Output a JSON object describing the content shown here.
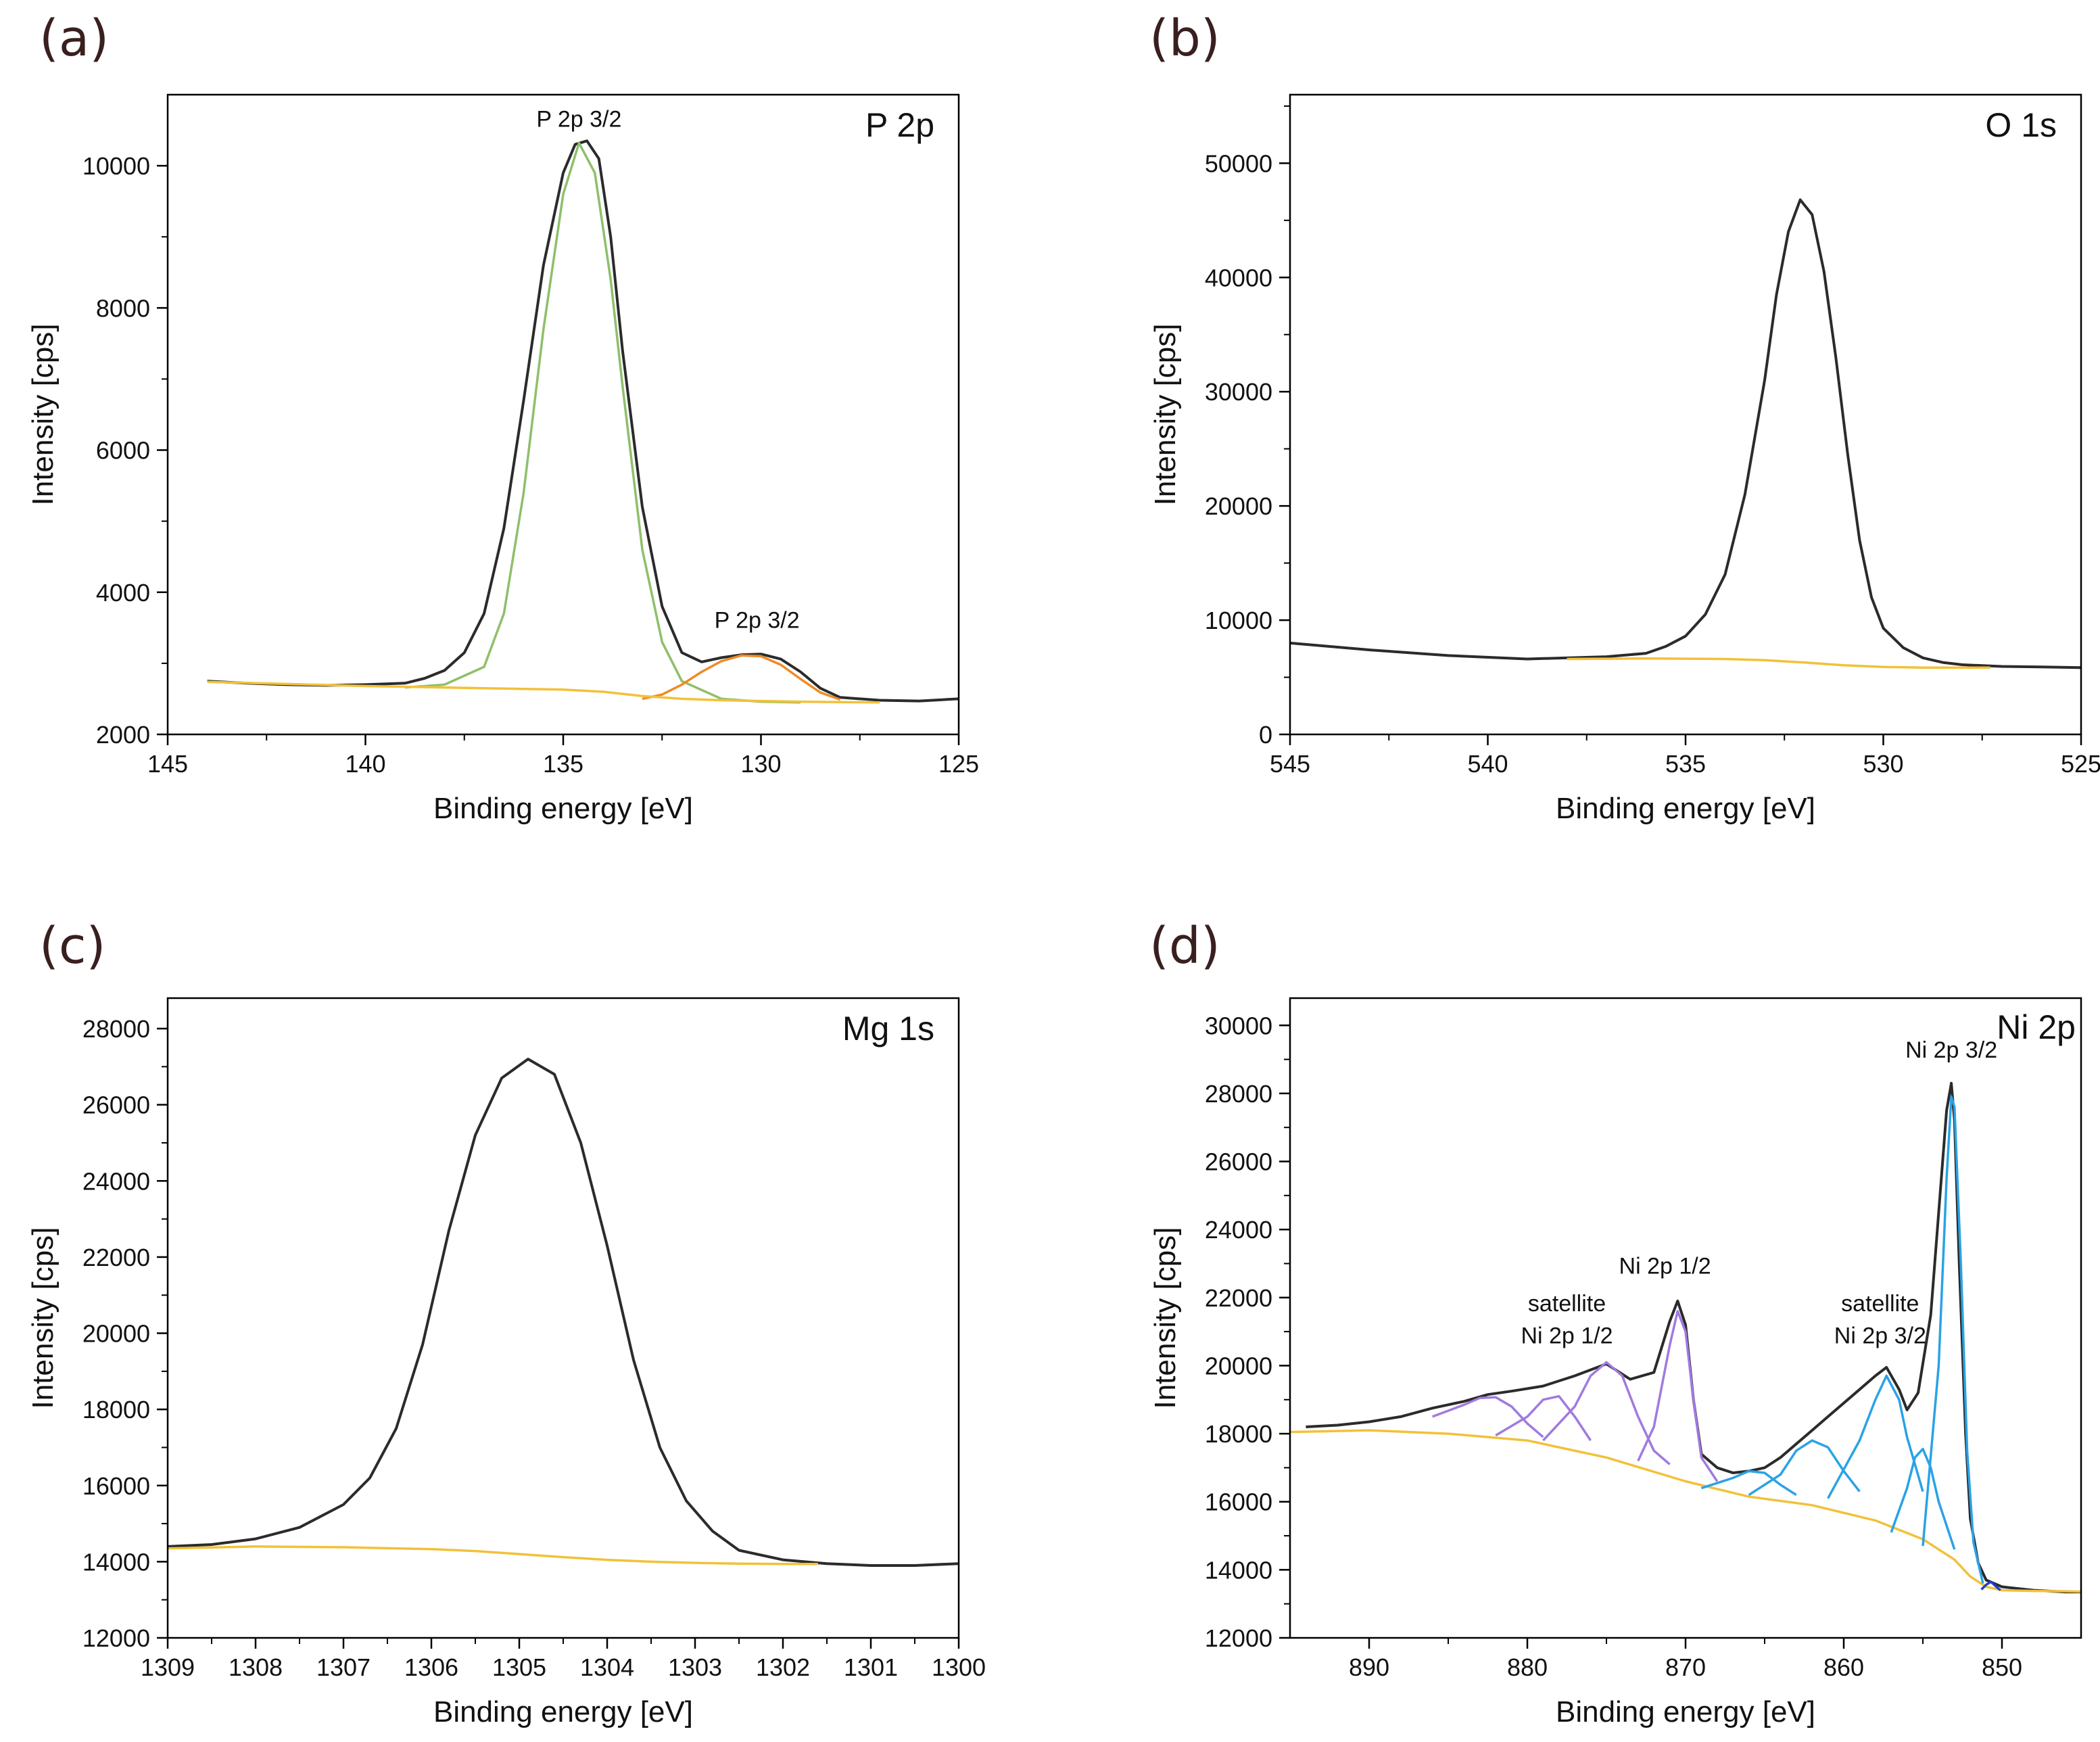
{
  "chart_data": [
    {
      "panel_label": "(a)",
      "type": "line",
      "title": "P 2p",
      "xlabel": "Binding energy [eV]",
      "ylabel": "Intensity [cps]",
      "xlim": [
        145,
        125
      ],
      "ylim": [
        2000,
        11000
      ],
      "xticks": [
        145,
        140,
        135,
        130,
        125
      ],
      "yticks": [
        2000,
        4000,
        6000,
        8000,
        10000
      ],
      "x_reversed": true,
      "annotations": [
        {
          "text": "P 2p 3/2",
          "x": 134.6,
          "y": 10550
        },
        {
          "text": "P 2p 3/2",
          "x": 130.1,
          "y": 3500
        }
      ],
      "series": [
        {
          "role": "spectrum",
          "color": "#2b2b2b",
          "x": [
            144,
            143,
            142,
            141,
            140,
            139,
            138.5,
            138,
            137.5,
            137,
            136.5,
            136,
            135.5,
            135,
            134.7,
            134.4,
            134.1,
            133.8,
            133.5,
            133,
            132.5,
            132,
            131.5,
            131,
            130.5,
            130,
            129.5,
            129,
            128.5,
            128,
            127,
            126,
            125
          ],
          "y": [
            2750,
            2720,
            2700,
            2690,
            2700,
            2720,
            2790,
            2900,
            3150,
            3700,
            4900,
            6700,
            8600,
            9900,
            10300,
            10350,
            10100,
            9000,
            7400,
            5200,
            3800,
            3150,
            3020,
            3080,
            3120,
            3130,
            3060,
            2880,
            2650,
            2520,
            2480,
            2470,
            2500
          ]
        },
        {
          "role": "fit-component",
          "color": "#8fbf6a",
          "x": [
            139,
            138,
            137,
            136.5,
            136,
            135.5,
            135,
            134.6,
            134.2,
            133.8,
            133.5,
            133,
            132.5,
            132,
            131,
            130,
            129
          ],
          "y": [
            2660,
            2700,
            2950,
            3700,
            5400,
            7700,
            9600,
            10320,
            9900,
            8400,
            6900,
            4600,
            3300,
            2750,
            2500,
            2460,
            2450
          ]
        },
        {
          "role": "fit-component",
          "color": "#f08a24",
          "x": [
            133,
            132.5,
            132,
            131.5,
            131,
            130.5,
            130,
            129.5,
            129,
            128.5,
            128
          ],
          "y": [
            2500,
            2560,
            2700,
            2880,
            3030,
            3110,
            3100,
            2980,
            2780,
            2590,
            2490
          ]
        },
        {
          "role": "background",
          "color": "#f2c13a",
          "x": [
            144,
            140,
            137,
            135,
            134,
            133,
            132,
            131,
            130,
            129,
            128,
            127
          ],
          "y": [
            2740,
            2680,
            2650,
            2630,
            2600,
            2540,
            2500,
            2480,
            2470,
            2460,
            2455,
            2450
          ]
        }
      ]
    },
    {
      "panel_label": "(b)",
      "type": "line",
      "title": "O 1s",
      "xlabel": "Binding energy [eV]",
      "ylabel": "Intensity [cps]",
      "xlim": [
        545,
        525
      ],
      "ylim": [
        0,
        56000
      ],
      "xticks": [
        545,
        540,
        535,
        530,
        525
      ],
      "yticks": [
        0,
        10000,
        20000,
        30000,
        40000,
        50000
      ],
      "x_reversed": true,
      "annotations": [],
      "series": [
        {
          "role": "spectrum",
          "color": "#2b2b2b",
          "x": [
            545,
            543,
            541,
            539,
            537,
            536,
            535.5,
            535,
            534.5,
            534,
            533.5,
            533,
            532.7,
            532.4,
            532.1,
            531.8,
            531.5,
            531.2,
            530.9,
            530.6,
            530.3,
            530,
            529.5,
            529,
            528.5,
            528,
            527,
            526,
            525
          ],
          "y": [
            8000,
            7400,
            6900,
            6600,
            6800,
            7100,
            7700,
            8600,
            10500,
            14000,
            21000,
            31000,
            38500,
            44000,
            46800,
            45500,
            40500,
            33000,
            24500,
            17000,
            12000,
            9300,
            7600,
            6700,
            6300,
            6100,
            5950,
            5900,
            5850
          ]
        },
        {
          "role": "background",
          "color": "#f2c13a",
          "x": [
            538,
            536,
            534,
            533,
            532,
            531,
            530,
            529,
            528,
            527.3
          ],
          "y": [
            6600,
            6650,
            6600,
            6500,
            6300,
            6050,
            5900,
            5850,
            5850,
            5850
          ]
        }
      ]
    },
    {
      "panel_label": "(c)",
      "type": "line",
      "title": "Mg 1s",
      "xlabel": "Binding energy [eV]",
      "ylabel": "Intensity [cps]",
      "xlim": [
        1309,
        1300
      ],
      "ylim": [
        12000,
        28800
      ],
      "xticks": [
        1309,
        1308,
        1307,
        1306,
        1305,
        1304,
        1303,
        1302,
        1301,
        1300
      ],
      "yticks": [
        12000,
        14000,
        16000,
        18000,
        20000,
        22000,
        24000,
        26000,
        28000
      ],
      "x_reversed": true,
      "annotations": [],
      "series": [
        {
          "role": "spectrum",
          "color": "#2b2b2b",
          "x": [
            1309,
            1308.5,
            1308,
            1307.5,
            1307,
            1306.7,
            1306.4,
            1306.1,
            1305.8,
            1305.5,
            1305.2,
            1304.9,
            1304.6,
            1304.3,
            1304,
            1303.7,
            1303.4,
            1303.1,
            1302.8,
            1302.5,
            1302,
            1301.5,
            1301,
            1300.5,
            1300
          ],
          "y": [
            14400,
            14450,
            14600,
            14900,
            15500,
            16200,
            17500,
            19700,
            22700,
            25200,
            26700,
            27200,
            26800,
            25000,
            22300,
            19300,
            17000,
            15600,
            14800,
            14300,
            14050,
            13950,
            13900,
            13900,
            13950
          ]
        },
        {
          "role": "background",
          "color": "#f2c13a",
          "x": [
            1309,
            1308,
            1307,
            1306,
            1305.5,
            1305,
            1304.5,
            1304,
            1303.5,
            1303,
            1302.5,
            1302,
            1301.6
          ],
          "y": [
            14350,
            14400,
            14380,
            14330,
            14280,
            14200,
            14120,
            14050,
            14000,
            13970,
            13950,
            13940,
            13940
          ]
        }
      ]
    },
    {
      "panel_label": "(d)",
      "type": "line",
      "title": "Ni 2p",
      "xlabel": "Binding energy [eV]",
      "ylabel": "Intensity [cps]",
      "xlim": [
        895,
        845
      ],
      "ylim": [
        12000,
        30800
      ],
      "xticks": [
        890,
        880,
        870,
        860,
        850
      ],
      "yticks": [
        12000,
        14000,
        16000,
        18000,
        20000,
        22000,
        24000,
        26000,
        28000,
        30000
      ],
      "x_reversed": true,
      "annotations": [
        {
          "text": "satellite",
          "x": 877.5,
          "y": 21600
        },
        {
          "text": "Ni 2p 1/2",
          "x": 877.5,
          "y": 20650
        },
        {
          "text": "Ni 2p 1/2",
          "x": 871.3,
          "y": 22700
        },
        {
          "text": "satellite",
          "x": 857.7,
          "y": 21600
        },
        {
          "text": "Ni 2p 3/2",
          "x": 857.7,
          "y": 20650
        },
        {
          "text": "Ni 2p 3/2",
          "x": 853.2,
          "y": 29050
        }
      ],
      "series": [
        {
          "role": "spectrum",
          "color": "#2b2b2b",
          "x": [
            894,
            892,
            890,
            888,
            886,
            884,
            882.5,
            881,
            879,
            877,
            875,
            873.5,
            872,
            871,
            870.5,
            870,
            869.5,
            869,
            868,
            867,
            866,
            865,
            864,
            863,
            862,
            861,
            860,
            859,
            858,
            857.3,
            856.5,
            856,
            855.3,
            854.5,
            854,
            853.5,
            853.2,
            853,
            852.7,
            852.3,
            852,
            851.5,
            851,
            850,
            848,
            846,
            845
          ],
          "y": [
            18200,
            18250,
            18350,
            18500,
            18750,
            18950,
            19150,
            19250,
            19400,
            19700,
            20050,
            19600,
            19800,
            21300,
            21900,
            21200,
            19000,
            17400,
            17000,
            16850,
            16900,
            17000,
            17300,
            17700,
            18100,
            18500,
            18900,
            19300,
            19700,
            19950,
            19300,
            18700,
            19200,
            21500,
            24500,
            27500,
            28300,
            27200,
            23000,
            18000,
            15500,
            14200,
            13700,
            13500,
            13400,
            13350,
            13350
          ]
        },
        {
          "role": "background",
          "color": "#f2c13a",
          "x": [
            895,
            890,
            885,
            880,
            875,
            870,
            866,
            862,
            858,
            855,
            853,
            852,
            851,
            850,
            848,
            846,
            845
          ],
          "y": [
            18050,
            18100,
            18000,
            17800,
            17300,
            16600,
            16150,
            15900,
            15450,
            14900,
            14300,
            13800,
            13500,
            13400,
            13380,
            13370,
            13360
          ]
        },
        {
          "role": "fit-component",
          "color": "#a07ae0",
          "x": [
            886,
            884,
            883,
            882,
            881,
            880,
            879
          ],
          "y": [
            18500,
            18850,
            19050,
            19070,
            18800,
            18300,
            17900
          ]
        },
        {
          "role": "fit-component",
          "color": "#a07ae0",
          "x": [
            882,
            880,
            879,
            878,
            877,
            876
          ],
          "y": [
            17950,
            18500,
            19000,
            19100,
            18500,
            17800
          ]
        },
        {
          "role": "fit-component",
          "color": "#a07ae0",
          "x": [
            879,
            877,
            876,
            875,
            874,
            873,
            872,
            871
          ],
          "y": [
            17800,
            18800,
            19700,
            20100,
            19700,
            18500,
            17500,
            17100
          ]
        },
        {
          "role": "fit-component",
          "color": "#a07ae0",
          "x": [
            873,
            872,
            871,
            870.5,
            870,
            869.5,
            869,
            868
          ],
          "y": [
            17200,
            18200,
            20600,
            21600,
            21000,
            19000,
            17300,
            16600
          ]
        },
        {
          "role": "fit-component",
          "color": "#2aa2e6",
          "x": [
            869,
            867,
            866,
            865,
            864,
            863
          ],
          "y": [
            16400,
            16700,
            16900,
            16850,
            16500,
            16200
          ]
        },
        {
          "role": "fit-component",
          "color": "#2aa2e6",
          "x": [
            866,
            864,
            863,
            862,
            861,
            860,
            859
          ],
          "y": [
            16200,
            16800,
            17500,
            17800,
            17600,
            16900,
            16300
          ]
        },
        {
          "role": "fit-component",
          "color": "#2aa2e6",
          "x": [
            861,
            859,
            858,
            857.3,
            856.5,
            856,
            855
          ],
          "y": [
            16100,
            17800,
            19000,
            19700,
            19000,
            17900,
            16300
          ]
        },
        {
          "role": "fit-component",
          "color": "#2aa2e6",
          "x": [
            857,
            856,
            855.5,
            855,
            854.5,
            854,
            853
          ],
          "y": [
            15100,
            16400,
            17300,
            17550,
            17000,
            16000,
            14600
          ]
        },
        {
          "role": "fit-component",
          "color": "#2aa2e6",
          "x": [
            855,
            854,
            853.5,
            853.2,
            853,
            852.6,
            852.2,
            851.8,
            851.2
          ],
          "y": [
            14700,
            20000,
            25500,
            27900,
            27600,
            23000,
            17500,
            14800,
            13600
          ]
        },
        {
          "role": "fit-component",
          "color": "#1f3fd1",
          "x": [
            851.3,
            851,
            850.7,
            850.4,
            850.1
          ],
          "y": [
            13420,
            13560,
            13650,
            13520,
            13400
          ]
        }
      ]
    }
  ]
}
